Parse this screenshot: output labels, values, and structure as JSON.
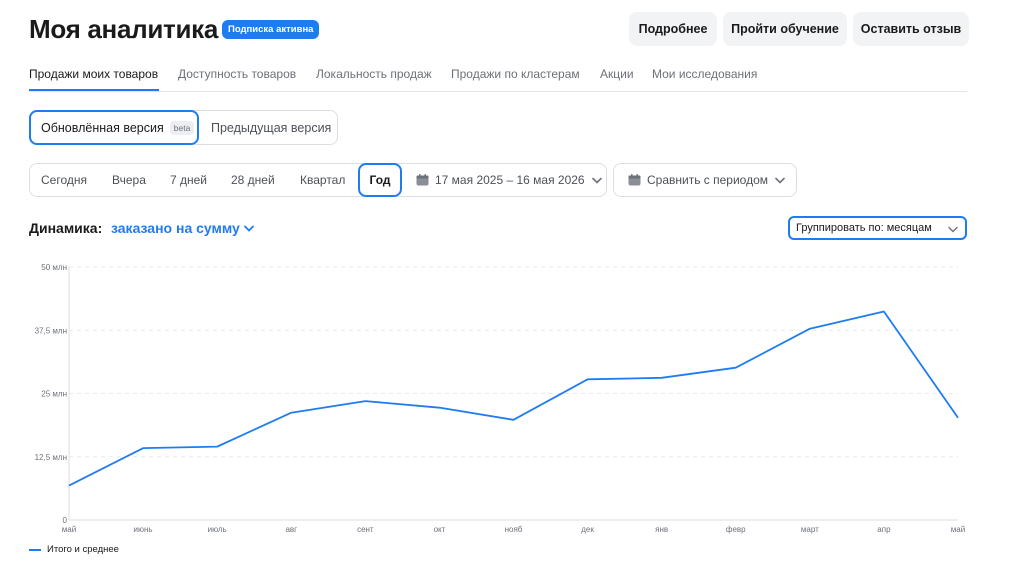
{
  "header": {
    "title": "Моя аналитика",
    "badge": "Подписка активна",
    "buttons": [
      "Подробнее",
      "Пройти обучение",
      "Оставить отзыв"
    ]
  },
  "tabs": [
    "Продажи моих товаров",
    "Доступность товаров",
    "Локальность продаж",
    "Продажи по кластерам",
    "Акции",
    "Мои исследования"
  ],
  "versions": {
    "updated": "Обновлённая версия",
    "beta": "beta",
    "previous": "Предыдущая версия"
  },
  "periods": [
    "Сегодня",
    "Вчера",
    "7 дней",
    "28 дней",
    "Квартал",
    "Год"
  ],
  "date_range": "17 мая 2025 – 16 мая 2026",
  "compare_label": "Сравнить с периодом",
  "dynamics": {
    "label": "Динамика:",
    "metric": "заказано на сумму"
  },
  "group_by": "Группировать по: месяцам",
  "colors": {
    "accent": "#1f7cf0"
  },
  "icons": [
    "calendar-icon",
    "chevron-down-icon"
  ],
  "chart_data": {
    "type": "line",
    "categories": [
      "май",
      "июнь",
      "июль",
      "авг",
      "сент",
      "окт",
      "нояб",
      "дек",
      "янв",
      "февр",
      "март",
      "апр",
      "май"
    ],
    "series": [
      {
        "name": "Итого и среднее",
        "values": [
          6.8,
          14.2,
          14.5,
          21.2,
          23.5,
          22.2,
          19.8,
          27.8,
          28.1,
          30.1,
          37.8,
          41.2,
          20.2
        ]
      }
    ],
    "y_ticks": [
      "0",
      "12,5 млн",
      "25 млн",
      "37,5 млн",
      "50 млн"
    ],
    "ylim": [
      0,
      50
    ],
    "grid": true,
    "legend_position": "bottom-left"
  }
}
